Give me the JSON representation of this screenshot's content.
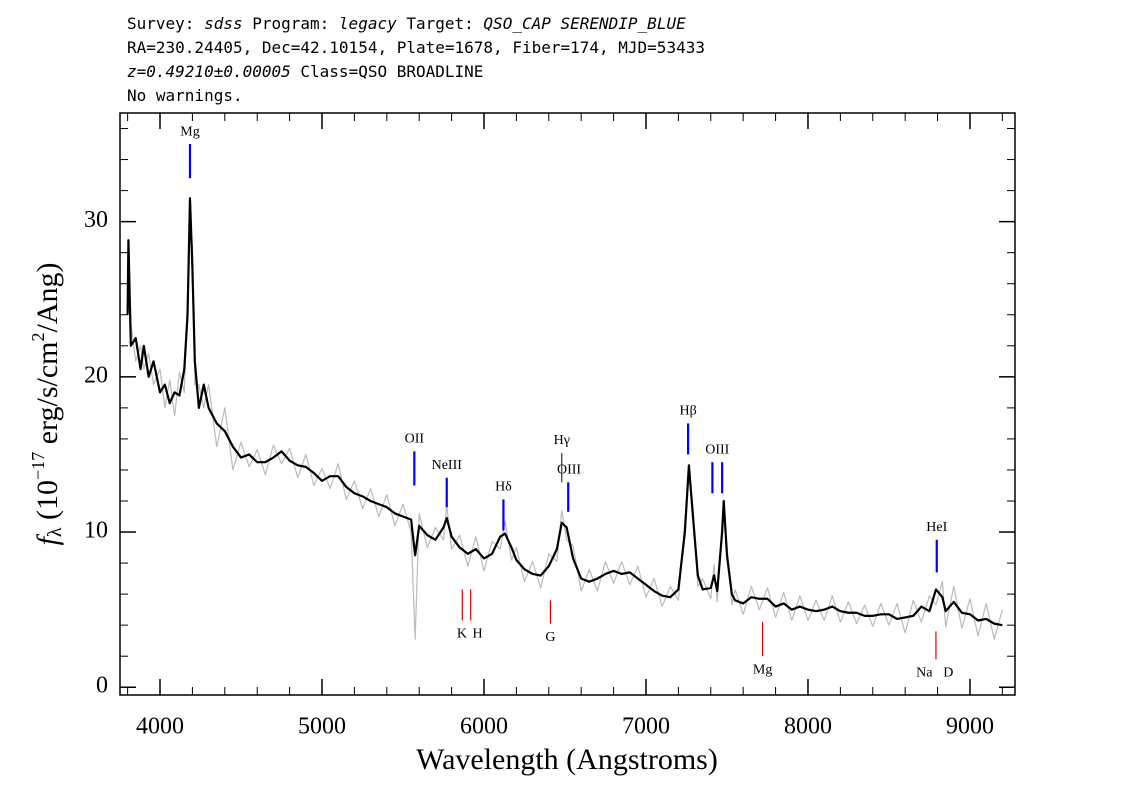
{
  "header": [
    [
      {
        "text": "Survey: ",
        "italic": false
      },
      {
        "text": "sdss",
        "italic": true
      },
      {
        "text": " Program: ",
        "italic": false
      },
      {
        "text": "legacy",
        "italic": true
      },
      {
        "text": " Target: ",
        "italic": false
      },
      {
        "text": "QSO_CAP SERENDIP_BLUE",
        "italic": true
      }
    ],
    [
      {
        "text": "RA=230.24405, Dec=42.10154, Plate=1678, Fiber=174, MJD=53433",
        "italic": false
      }
    ],
    [
      {
        "text": "z=0.49210±0.00005",
        "italic": true
      },
      {
        "text": " Class=QSO BROADLINE",
        "italic": false
      }
    ],
    [
      {
        "text": "No warnings.",
        "italic": false
      }
    ]
  ],
  "chart_data": {
    "type": "line",
    "xlabel": "Wavelength (Angstroms)",
    "ylabel_parts": [
      {
        "text": "f",
        "style": "italic"
      },
      {
        "text": "λ",
        "style": "sub"
      },
      {
        "text": " (10",
        "style": "normal"
      },
      {
        "text": "−17",
        "style": "sup"
      },
      {
        "text": " erg/s/cm",
        "style": "normal"
      },
      {
        "text": "2",
        "style": "sup"
      },
      {
        "text": "/Ang)",
        "style": "normal"
      }
    ],
    "xlim": [
      3753,
      9278
    ],
    "ylim": [
      -0.5,
      37
    ],
    "xticks": [
      4000,
      5000,
      6000,
      7000,
      8000,
      9000
    ],
    "yticks": [
      0,
      10,
      20,
      30
    ],
    "xminorticks": [
      3800,
      4200,
      4400,
      4600,
      4800,
      5200,
      5400,
      5600,
      5800,
      6200,
      6400,
      6600,
      6800,
      7200,
      7400,
      7600,
      7800,
      8200,
      8400,
      8600,
      8800,
      9200
    ],
    "yminorticks": [
      2,
      4,
      6,
      8,
      12,
      14,
      16,
      18,
      22,
      24,
      26,
      28,
      32,
      34,
      36
    ],
    "x": [
      3800,
      3805,
      3820,
      3850,
      3880,
      3900,
      3930,
      3960,
      4000,
      4030,
      4060,
      4090,
      4120,
      4150,
      4170,
      4185,
      4200,
      4215,
      4240,
      4270,
      4300,
      4350,
      4400,
      4450,
      4500,
      4550,
      4600,
      4650,
      4700,
      4750,
      4800,
      4850,
      4900,
      4950,
      5000,
      5050,
      5100,
      5150,
      5200,
      5250,
      5300,
      5350,
      5400,
      5450,
      5500,
      5550,
      5575,
      5600,
      5650,
      5700,
      5750,
      5770,
      5800,
      5850,
      5900,
      5950,
      6000,
      6050,
      6100,
      6130,
      6170,
      6200,
      6250,
      6300,
      6350,
      6400,
      6450,
      6480,
      6510,
      6550,
      6600,
      6650,
      6700,
      6750,
      6800,
      6850,
      6900,
      6950,
      7000,
      7050,
      7100,
      7150,
      7200,
      7240,
      7265,
      7290,
      7320,
      7350,
      7400,
      7420,
      7440,
      7470,
      7480,
      7500,
      7530,
      7550,
      7600,
      7650,
      7700,
      7750,
      7800,
      7850,
      7900,
      7950,
      8000,
      8050,
      8100,
      8150,
      8200,
      8250,
      8300,
      8350,
      8400,
      8450,
      8500,
      8550,
      8600,
      8650,
      8700,
      8750,
      8790,
      8830,
      8850,
      8900,
      8950,
      9000,
      9050,
      9100,
      9150,
      9200
    ],
    "series": [
      {
        "color": "#bbbbbb",
        "width": 1.2,
        "values": [
          25.8,
          27.5,
          23.5,
          21,
          22,
          20.5,
          21.5,
          19.5,
          20.5,
          18,
          19.8,
          17.5,
          20.3,
          19,
          25.5,
          30,
          28.5,
          19.5,
          19.5,
          18,
          19.5,
          15.5,
          18,
          14,
          15.8,
          14.2,
          15.3,
          13.7,
          15.6,
          14.4,
          15.4,
          13.5,
          15,
          13,
          14.1,
          12.8,
          14.4,
          12.1,
          13.3,
          11.5,
          12.8,
          11,
          12.4,
          10.4,
          11.8,
          10,
          3.1,
          11.2,
          9,
          10.3,
          9.5,
          11.7,
          8.9,
          9.8,
          7.8,
          9.7,
          7.5,
          9.4,
          8.9,
          10.7,
          8.2,
          9,
          6.8,
          8.1,
          6.4,
          8.6,
          8.1,
          11.4,
          9.5,
          9.1,
          6.2,
          7.6,
          6.2,
          8.1,
          6.7,
          8.1,
          6.6,
          7.8,
          5.8,
          7.0,
          5.2,
          6.5,
          5.6,
          10.7,
          13.6,
          11.7,
          6.5,
          7.0,
          5.7,
          7.9,
          5.5,
          10.7,
          11.3,
          9.2,
          5.3,
          6.3,
          4.7,
          6.5,
          5.0,
          6.4,
          4.5,
          6.1,
          4.3,
          5.9,
          4.3,
          5.6,
          4.3,
          5.9,
          4.2,
          5.5,
          4.1,
          5.3,
          3.9,
          5.4,
          4.0,
          5.4,
          3.5,
          5.6,
          4.2,
          5.9,
          5.3,
          6.8,
          3.9,
          6.5,
          3.8,
          5.7,
          3.3,
          5.4,
          3.1,
          5.0
        ]
      },
      {
        "color": "#000000",
        "width": 2.2,
        "values": [
          24,
          28.8,
          22,
          22.5,
          20.5,
          22,
          20,
          21,
          19,
          19.5,
          18.3,
          19,
          18.8,
          20.5,
          24,
          31.5,
          27,
          21,
          18,
          19.5,
          18,
          17,
          16.5,
          15.5,
          14.8,
          15,
          14.5,
          14.5,
          14.8,
          15.2,
          14.6,
          14.3,
          14.2,
          13.8,
          13.3,
          13.6,
          13.6,
          12.9,
          12.5,
          12.3,
          12.0,
          11.8,
          11.6,
          11.2,
          11.0,
          10.8,
          8.5,
          10.4,
          9.8,
          9.5,
          10.3,
          10.9,
          9.7,
          9.0,
          8.6,
          8.9,
          8.3,
          8.6,
          9.7,
          9.9,
          9.0,
          8.2,
          7.6,
          7.3,
          7.2,
          7.8,
          8.9,
          10.6,
          10.3,
          8.3,
          7.0,
          6.8,
          7.0,
          7.3,
          7.5,
          7.3,
          7.4,
          7.0,
          6.6,
          6.2,
          5.9,
          5.8,
          6.3,
          10,
          14.3,
          11,
          7.2,
          6.3,
          6.4,
          7.2,
          6.2,
          10,
          12.0,
          8.5,
          6.0,
          5.6,
          5.4,
          5.8,
          5.7,
          5.7,
          5.2,
          5.4,
          5.0,
          5.2,
          5.0,
          4.9,
          5.0,
          5.2,
          4.9,
          4.8,
          4.8,
          4.6,
          4.6,
          4.7,
          4.7,
          4.4,
          4.5,
          4.6,
          5.2,
          4.9,
          6.3,
          5.8,
          4.9,
          5.5,
          4.8,
          4.7,
          4.3,
          4.4,
          4.1,
          4.0
        ]
      }
    ],
    "annotations": [
      {
        "label": "Mg",
        "label_x": 4185,
        "tick_x": [
          4185
        ],
        "tick_y": [
          32.8,
          35.0
        ],
        "color": "#0000ff",
        "side": "above"
      },
      {
        "label": "OII",
        "label_x": 5570,
        "tick_x": [
          5570
        ],
        "tick_y": [
          13.0,
          15.2
        ],
        "color": "#0000ff",
        "side": "above"
      },
      {
        "label": "NeIII",
        "label_x": 5770,
        "tick_x": [
          5770
        ],
        "tick_y": [
          11.6,
          13.5
        ],
        "color": "#0000ff",
        "side": "above"
      },
      {
        "label": "Hδ",
        "label_x": 6120,
        "tick_x": [
          6120
        ],
        "tick_y": [
          10.1,
          12.1
        ],
        "color": "#0000ff",
        "side": "above"
      },
      {
        "label": "Hγ",
        "label_x": 6480,
        "tick_x": [
          6480
        ],
        "tick_y": [
          13.2,
          15.1
        ],
        "color": "#333333",
        "side": "above"
      },
      {
        "label": "OIII",
        "label_x": 6525,
        "tick_x": [
          6520
        ],
        "tick_y": [
          11.3,
          13.2
        ],
        "color": "#0000ff",
        "side": "above"
      },
      {
        "label": "Hβ",
        "label_x": 7260,
        "tick_x": [
          7260
        ],
        "tick_y": [
          15.0,
          17.0
        ],
        "color": "#0000ff",
        "side": "above"
      },
      {
        "label": "OIII",
        "label_x": 7440,
        "tick_x": [
          7410,
          7470
        ],
        "tick_y": [
          12.5,
          14.5
        ],
        "color": "#0000ff",
        "side": "above"
      },
      {
        "label": "HeI",
        "label_x": 8795,
        "tick_x": [
          8795
        ],
        "tick_y": [
          7.4,
          9.5
        ],
        "color": "#0000ff",
        "side": "above"
      },
      {
        "label": "K",
        "label_x": 5864,
        "tick_x": [
          5866
        ],
        "tick_y": [
          4.3,
          6.3
        ],
        "color": "#dd0000",
        "side": "below"
      },
      {
        "label": "H",
        "label_x": 5960,
        "tick_x": [
          5918
        ],
        "tick_y": [
          4.3,
          6.3
        ],
        "color": "#dd0000",
        "side": "below"
      },
      {
        "label": "G",
        "label_x": 6410,
        "tick_x": [
          6410
        ],
        "tick_y": [
          4.1,
          5.6
        ],
        "color": "#dd0000",
        "side": "below"
      },
      {
        "label": "Mg",
        "label_x": 7720,
        "tick_x": [
          7720
        ],
        "tick_y": [
          2.0,
          4.2
        ],
        "color": "#dd0000",
        "side": "below"
      },
      {
        "label": "Na",
        "label_x": 8718,
        "tick_x": [
          8790
        ],
        "tick_y": [
          1.8,
          3.6
        ],
        "color": "#dd0000",
        "side": "below"
      },
      {
        "label": "D",
        "label_x": 8866,
        "tick_x": [],
        "tick_y": [
          1.8,
          3.6
        ],
        "color": "#dd0000",
        "side": "below"
      }
    ]
  }
}
